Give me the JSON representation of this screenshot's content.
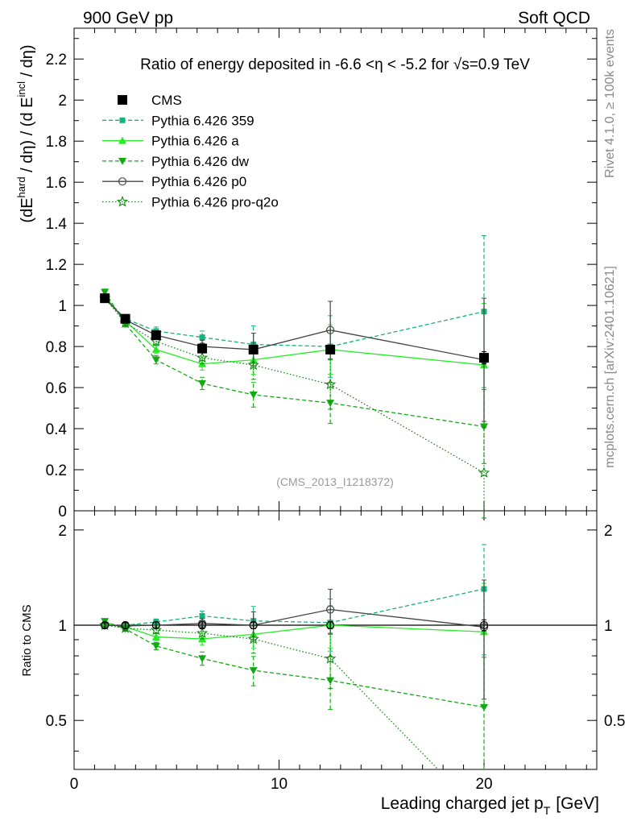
{
  "header": {
    "left": "900 GeV pp",
    "right": "Soft QCD"
  },
  "side_labels": {
    "top": "Rivet 4.1.0, ≥ 100k events",
    "bottom": "mcplots.cern.ch [arXiv:2401.10621]"
  },
  "chart_data": {
    "type": "line",
    "title": "Ratio of energy deposited in -6.6 <η < -5.2 for √s=0.9 TeV",
    "analysis_id": "(CMS_2013_I1218372)",
    "ylabel": "(dE^hard / dη) / (d E^incl / dη)",
    "ylabel_parts": [
      "(dE",
      "hard",
      " / dη) / (d E",
      "incl",
      " / dη)"
    ],
    "xlabel": "Leading charged jet p",
    "xlabel_sub": "T",
    "xlabel_unit": "[GeV]",
    "ratio_ylabel": "Ratio to CMS",
    "xlim": [
      0,
      25.5
    ],
    "ylim": [
      0,
      2.35
    ],
    "ratio_ylim": [
      0.35,
      2.3
    ],
    "x_ticks": [
      "0",
      "10",
      "20"
    ],
    "y_ticks": [
      "0",
      "0.2",
      "0.4",
      "0.6",
      "0.8",
      "1",
      "1.2",
      "1.4",
      "1.6",
      "1.8",
      "2",
      "2.2"
    ],
    "ratio_ticks": [
      "0.5",
      "1",
      "2"
    ],
    "x": [
      1.5,
      2.5,
      4.0,
      6.25,
      8.75,
      12.5,
      20.0
    ],
    "series": [
      {
        "name": "CMS",
        "color": "#000000",
        "dash": "",
        "marker": "square",
        "hide_line": true,
        "values": [
          1.035,
          0.935,
          0.855,
          0.79,
          0.785,
          0.785,
          0.745
        ],
        "errors": [
          0.02,
          0.02,
          0.02,
          0.02,
          0.02,
          0.02,
          0.03
        ]
      },
      {
        "name": "Pythia 6.426 359",
        "color": "#14b37a",
        "dash": "5,3",
        "marker": "smallsquare",
        "values": [
          1.04,
          0.935,
          0.875,
          0.845,
          0.81,
          0.8,
          0.97
        ],
        "errors": [
          0.01,
          0.015,
          0.02,
          0.03,
          0.09,
          0.15,
          0.37
        ]
      },
      {
        "name": "Pythia 6.426 a",
        "color": "#22ee22",
        "dash": "",
        "marker": "triangle-up",
        "values": [
          1.045,
          0.925,
          0.785,
          0.715,
          0.735,
          0.785,
          0.71
        ],
        "errors": [
          0.01,
          0.015,
          0.02,
          0.03,
          0.07,
          0.12,
          0.3
        ]
      },
      {
        "name": "Pythia 6.426 dw",
        "color": "#11aa11",
        "dash": "5,3",
        "marker": "triangle-down",
        "values": [
          1.065,
          0.91,
          0.735,
          0.62,
          0.565,
          0.525,
          0.41
        ],
        "errors": [
          0.015,
          0.015,
          0.02,
          0.03,
          0.06,
          0.1,
          0.18
        ]
      },
      {
        "name": "Pythia 6.426 p0",
        "color": "#444444",
        "dash": "",
        "marker": "circle",
        "values": [
          1.035,
          0.93,
          0.855,
          0.8,
          0.785,
          0.88,
          0.735
        ],
        "errors": [
          0.01,
          0.015,
          0.02,
          0.03,
          0.08,
          0.14,
          0.3
        ]
      },
      {
        "name": "Pythia 6.426 pro-q2o",
        "color": "#118811",
        "dash": "1.5,2.5",
        "marker": "star",
        "values": [
          1.035,
          0.915,
          0.825,
          0.745,
          0.71,
          0.615,
          0.185
        ],
        "errors": [
          0.01,
          0.015,
          0.02,
          0.03,
          0.07,
          0.12,
          0.22
        ]
      }
    ]
  }
}
